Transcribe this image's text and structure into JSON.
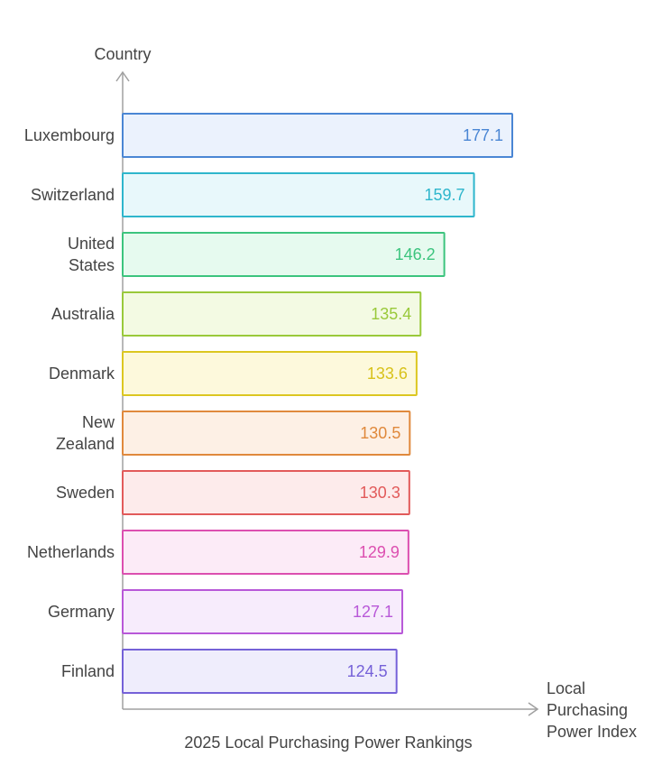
{
  "chart_data": {
    "type": "bar",
    "orientation": "horizontal",
    "title": "2025 Local Purchasing Power Rankings",
    "ylabel": "Country",
    "xlabel_lines": [
      "Local",
      "Purchasing",
      "Power Index"
    ],
    "categories": [
      [
        "Luxembourg"
      ],
      [
        "Switzerland"
      ],
      [
        "United",
        "States"
      ],
      [
        "Australia"
      ],
      [
        "Denmark"
      ],
      [
        "New",
        "Zealand"
      ],
      [
        "Sweden"
      ],
      [
        "Netherlands"
      ],
      [
        "Germany"
      ],
      [
        "Finland"
      ]
    ],
    "values": [
      177.1,
      159.7,
      146.2,
      135.4,
      133.6,
      130.5,
      130.3,
      129.9,
      127.1,
      124.5
    ],
    "value_labels": [
      "177.1",
      "159.7",
      "146.2",
      "135.4",
      "133.6",
      "130.5",
      "130.3",
      "129.9",
      "127.1",
      "124.5"
    ],
    "colors": [
      {
        "stroke": "#4a86d4",
        "fill": "#ebf2fd",
        "text": "#4a86d4"
      },
      {
        "stroke": "#2eb6cc",
        "fill": "#e8f8fb",
        "text": "#2eb6cc"
      },
      {
        "stroke": "#3cc47e",
        "fill": "#e6faef",
        "text": "#3cc47e"
      },
      {
        "stroke": "#99c93a",
        "fill": "#f3fae3",
        "text": "#99c93a"
      },
      {
        "stroke": "#dcc721",
        "fill": "#fdf9dc",
        "text": "#d8c21b"
      },
      {
        "stroke": "#e0893c",
        "fill": "#fdf0e5",
        "text": "#e0893c"
      },
      {
        "stroke": "#e25a5a",
        "fill": "#fdebeb",
        "text": "#e25a5a"
      },
      {
        "stroke": "#dc4fb0",
        "fill": "#fcebf7",
        "text": "#dc4fb0"
      },
      {
        "stroke": "#b858d8",
        "fill": "#f7ecfc",
        "text": "#b858d8"
      },
      {
        "stroke": "#7561d8",
        "fill": "#efedfc",
        "text": "#7561d8"
      }
    ],
    "grid": false
  }
}
